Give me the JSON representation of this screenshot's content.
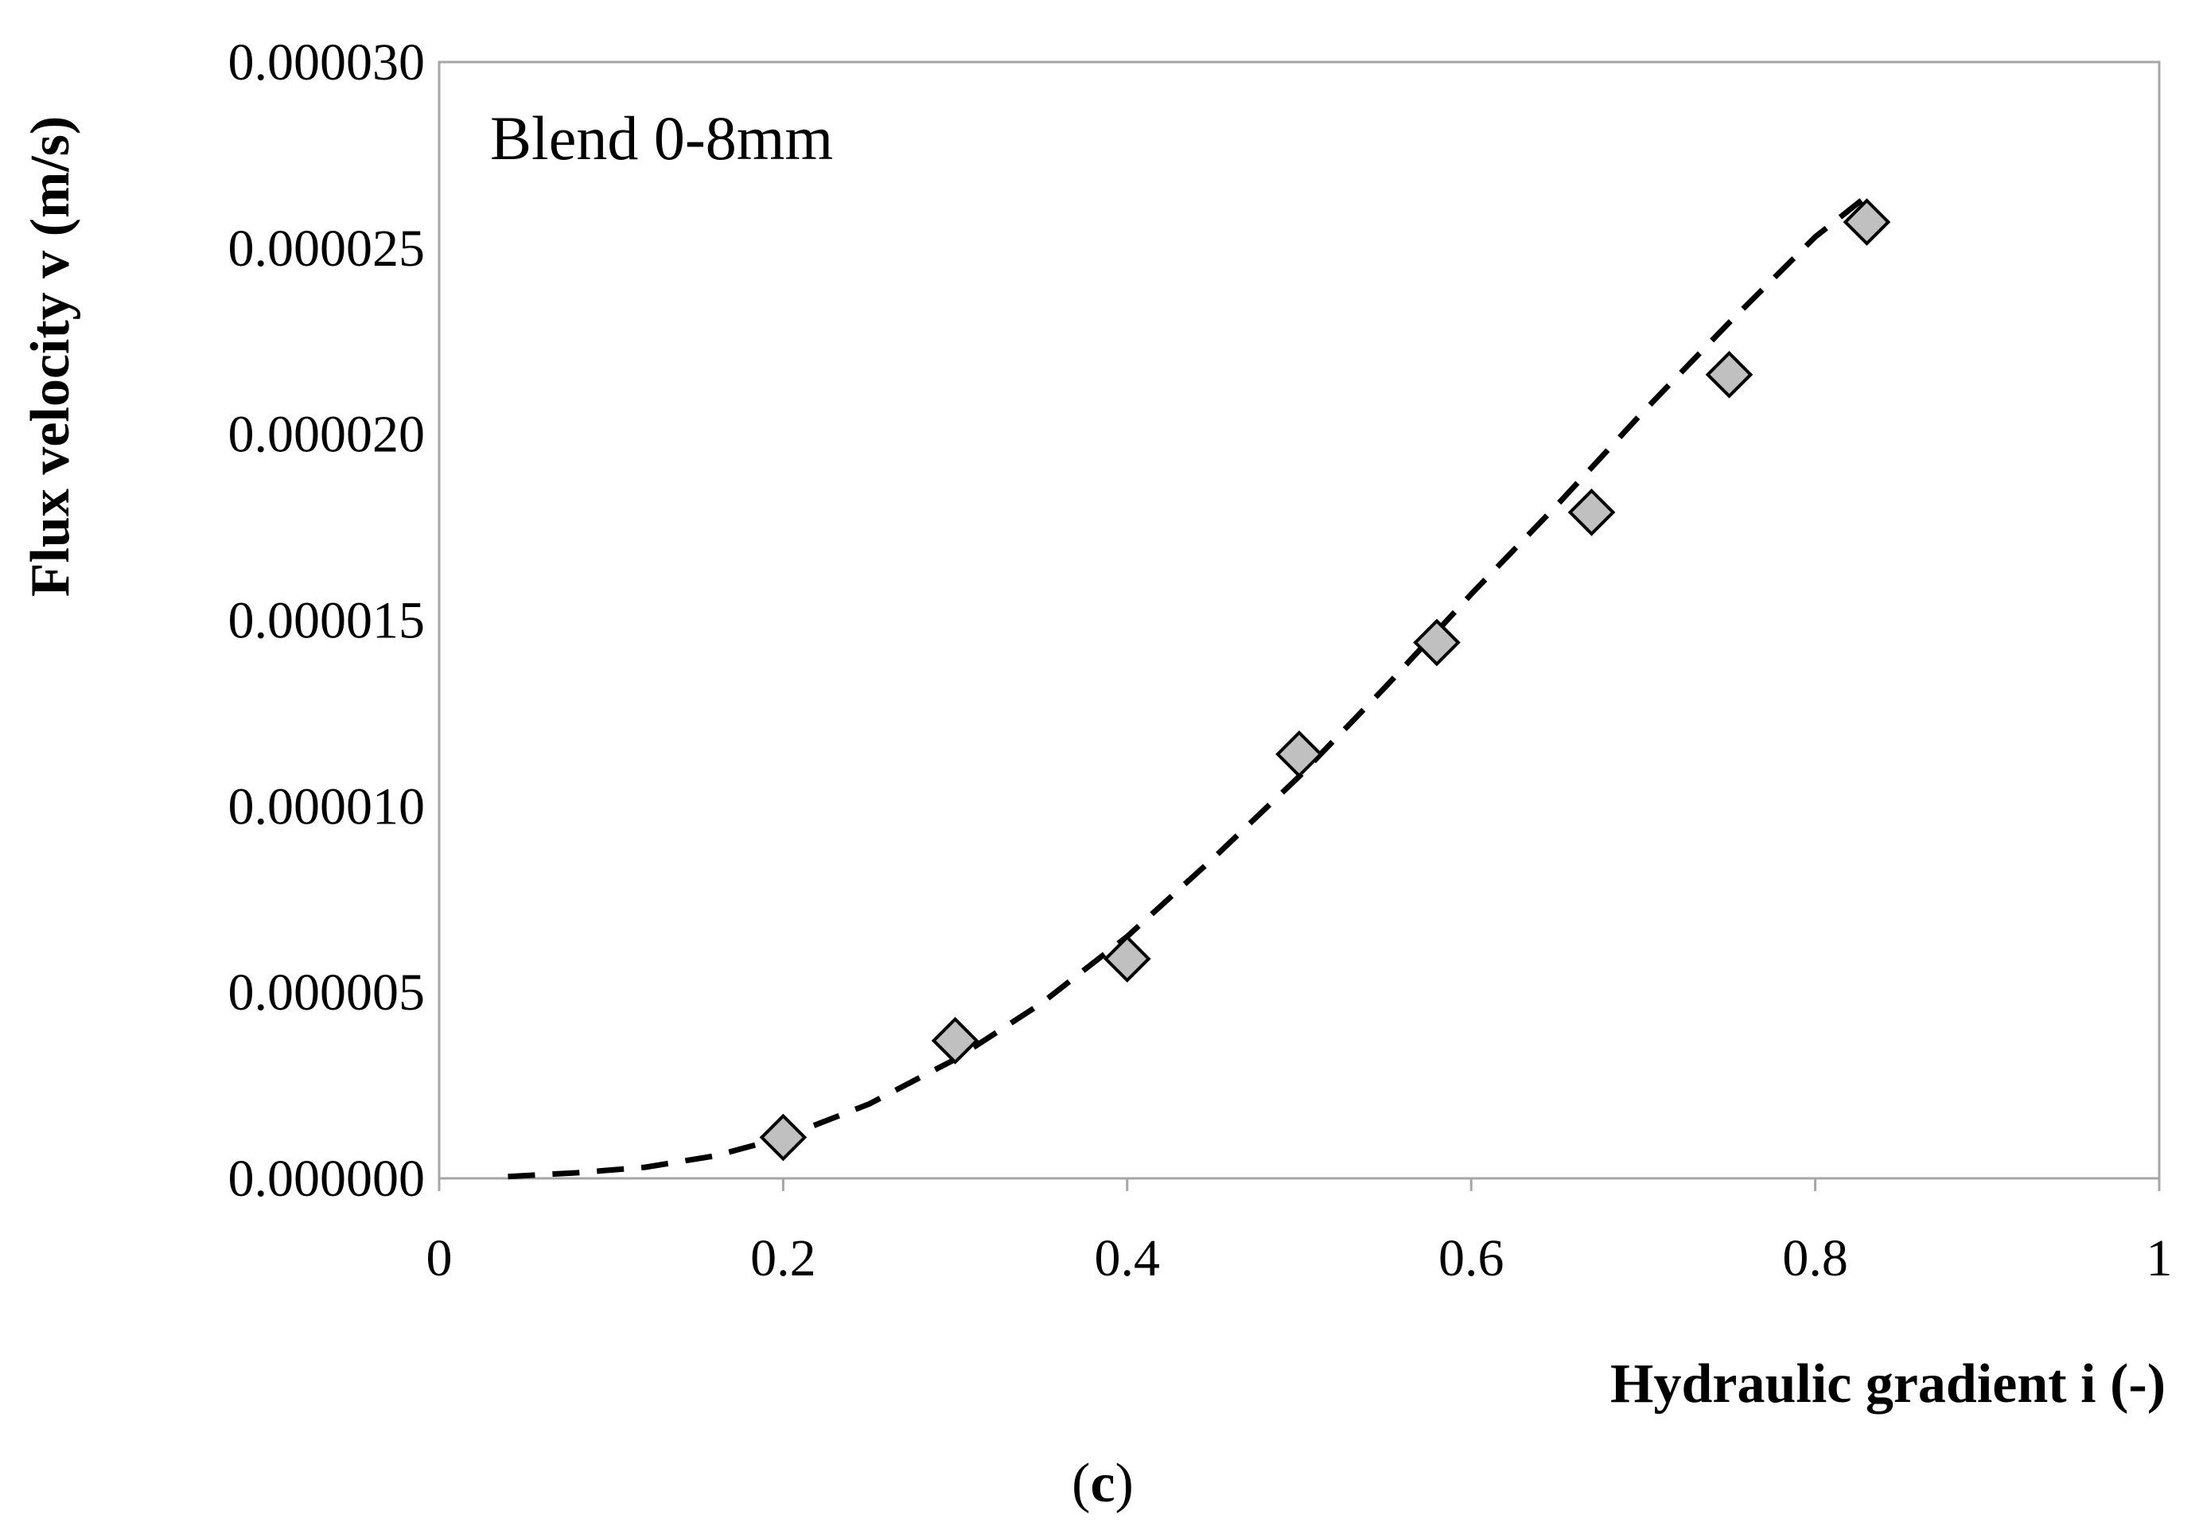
{
  "chart_data": {
    "type": "scatter",
    "annotation": "Blend 0-8mm",
    "xlabel": "Hydraulic gradient i (-)",
    "ylabel": "Flux velocity v (m/s)",
    "caption_text": "c",
    "xlim": [
      0,
      1
    ],
    "ylim": [
      0,
      3e-05
    ],
    "x_ticks": [
      "0",
      "0.2",
      "0.4",
      "0.6",
      "0.8",
      "1"
    ],
    "y_ticks": [
      "0.000000",
      "0.000005",
      "0.000010",
      "0.000015",
      "0.000020",
      "0.000025",
      "0.000030"
    ],
    "grid": false,
    "legend": "none",
    "series": [
      {
        "marker": "diamond",
        "marker_fill": "#c0c0c0",
        "marker_stroke": "#000000",
        "x": [
          0.2,
          0.3,
          0.4,
          0.5,
          0.58,
          0.67,
          0.75,
          0.83
        ],
        "y": [
          1.1e-06,
          3.7e-06,
          5.9e-06,
          1.14e-05,
          1.44e-05,
          1.79e-05,
          2.16e-05,
          2.57e-05
        ]
      }
    ],
    "trendline": {
      "style": "dashed",
      "color": "#000000",
      "x": [
        0.04,
        0.08,
        0.12,
        0.16,
        0.2,
        0.25,
        0.3,
        0.35,
        0.4,
        0.45,
        0.5,
        0.55,
        0.6,
        0.65,
        0.7,
        0.75,
        0.8,
        0.83
      ],
      "y": [
        5e-08,
        1.5e-07,
        3e-07,
        6e-07,
        1.1e-06,
        2e-06,
        3.2e-06,
        4.7e-06,
        6.5e-06,
        8.6e-06,
        1.08e-05,
        1.32e-05,
        1.57e-05,
        1.81e-05,
        2.06e-05,
        2.3e-05,
        2.53e-05,
        2.64e-05
      ]
    }
  }
}
